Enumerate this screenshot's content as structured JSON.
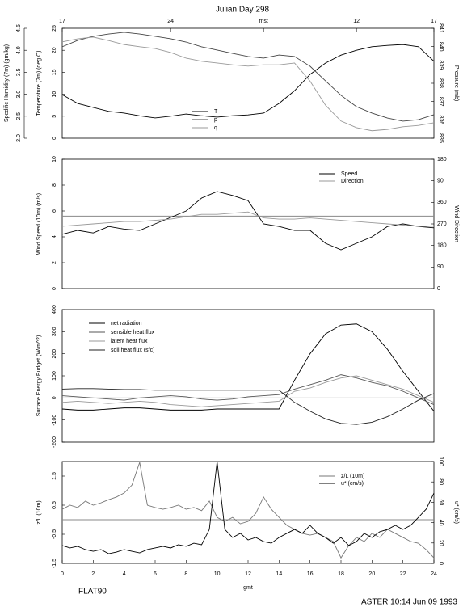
{
  "chart_data": [
    {
      "type": "line",
      "title": "Julian Day 298",
      "x": [
        0,
        1,
        2,
        3,
        4,
        5,
        6,
        7,
        8,
        9,
        10,
        11,
        12,
        13,
        14,
        15,
        16,
        17,
        18,
        19,
        20,
        21,
        22,
        23,
        24
      ],
      "xlim": [
        0,
        24
      ],
      "x2ticks": [
        {
          "value": 0,
          "label": "17"
        },
        {
          "value": 7,
          "label": "24"
        },
        {
          "value": 13,
          "label": "mst"
        },
        {
          "value": 19,
          "label": "12"
        },
        {
          "value": 24,
          "label": "17"
        }
      ],
      "ylabel": "Temperature (7m) (deg C)",
      "ylim": [
        0,
        25
      ],
      "yticks": [
        0,
        5,
        10,
        15,
        20,
        25
      ],
      "y2label": "Pressure (mb)",
      "y2lim": [
        835,
        841
      ],
      "y2ticks": [
        835,
        836,
        837,
        838,
        839,
        840,
        841
      ],
      "y3label": "Spedific Humidity (7m) (gm/kg)",
      "y3lim": [
        2,
        4.5
      ],
      "y3ticks": [
        {
          "value": 2,
          "label": "2.0"
        },
        2.5,
        {
          "value": 3,
          "label": "3.0"
        },
        3.5,
        {
          "value": 4,
          "label": "4.0"
        },
        4.5
      ],
      "legend": "lower center",
      "series": [
        {
          "name": "T",
          "color": "#000000",
          "values": [
            9.9,
            7.9,
            7.0,
            6.1,
            5.7,
            5.1,
            4.6,
            5.0,
            5.5,
            5.1,
            4.8,
            5.1,
            5.3,
            5.7,
            7.9,
            10.8,
            14.5,
            17.1,
            18.9,
            20.0,
            20.8,
            21.1,
            21.3,
            20.8,
            17.5
          ]
        },
        {
          "name": "p",
          "color": "#444444",
          "axis": "y2",
          "values": [
            839.99,
            840.34,
            840.56,
            840.69,
            840.78,
            840.69,
            840.56,
            840.43,
            840.25,
            839.99,
            839.81,
            839.63,
            839.46,
            839.37,
            839.54,
            839.46,
            838.93,
            838.13,
            837.34,
            836.72,
            836.37,
            836.1,
            835.93,
            836.01,
            836.28
          ]
        },
        {
          "name": "q",
          "color": "#999999",
          "axis": "y3",
          "values": [
            4.19,
            4.26,
            4.3,
            4.22,
            4.13,
            4.08,
            4.04,
            3.95,
            3.82,
            3.75,
            3.71,
            3.67,
            3.64,
            3.67,
            3.67,
            3.71,
            3.3,
            2.75,
            2.39,
            2.24,
            2.17,
            2.2,
            2.26,
            2.29,
            2.35
          ]
        }
      ]
    },
    {
      "type": "line",
      "x": [
        0,
        1,
        2,
        3,
        4,
        5,
        6,
        7,
        8,
        9,
        10,
        11,
        12,
        13,
        14,
        15,
        16,
        17,
        18,
        19,
        20,
        21,
        22,
        23,
        24
      ],
      "xlim": [
        0,
        24
      ],
      "ylabel": "Wind Speed (10m) (m/s)",
      "ylim": [
        0,
        10
      ],
      "yticks": [
        0,
        2,
        4,
        6,
        8,
        10
      ],
      "y2label": "Wind Direction",
      "y2lim": [
        0,
        540
      ],
      "y2ticks": [
        0,
        90,
        180,
        270,
        360,
        {
          "value": 450,
          "label": "90"
        },
        {
          "value": 540,
          "label": "180"
        }
      ],
      "hlines": [
        5.6
      ],
      "legend": "upper right",
      "series": [
        {
          "name": "Speed",
          "color": "#000000",
          "values": [
            4.2,
            4.5,
            4.3,
            4.8,
            4.6,
            4.5,
            5.0,
            5.5,
            6.0,
            7.0,
            7.5,
            7.2,
            6.8,
            5.0,
            4.8,
            4.5,
            4.5,
            3.5,
            3.0,
            3.5,
            4.0,
            4.8,
            5.0,
            4.8,
            4.7
          ]
        },
        {
          "name": "Direction",
          "color": "#999999",
          "axis": "y2",
          "values": [
            260,
            265,
            270,
            275,
            280,
            280,
            285,
            290,
            300,
            310,
            310,
            315,
            320,
            295,
            290,
            290,
            295,
            290,
            285,
            280,
            275,
            270,
            265,
            260,
            260
          ]
        }
      ]
    },
    {
      "type": "line",
      "x": [
        0,
        1,
        2,
        3,
        4,
        5,
        6,
        7,
        8,
        9,
        10,
        11,
        12,
        13,
        14,
        15,
        16,
        17,
        18,
        19,
        20,
        21,
        22,
        23,
        24
      ],
      "xlim": [
        0,
        24
      ],
      "ylabel": "Surface Energy Budget (W/m^2)",
      "ylim": [
        -200,
        400
      ],
      "yticks": [
        -200,
        -100,
        0,
        100,
        200,
        300,
        400
      ],
      "hlines": [
        0
      ],
      "legend": "upper left",
      "series": [
        {
          "name": "net radiation",
          "color": "#000000",
          "values": [
            -50,
            -55,
            -55,
            -50,
            -45,
            -45,
            -50,
            -55,
            -55,
            -55,
            -50,
            -50,
            -50,
            -50,
            -50,
            80,
            200,
            290,
            330,
            335,
            300,
            220,
            120,
            30,
            -60
          ]
        },
        {
          "name": "sensible heat flux",
          "color": "#555555",
          "values": [
            10,
            5,
            0,
            -5,
            -10,
            0,
            5,
            10,
            5,
            -5,
            -10,
            -5,
            5,
            10,
            15,
            40,
            60,
            80,
            105,
            90,
            70,
            55,
            30,
            0,
            -30
          ]
        },
        {
          "name": "latent heat flux",
          "color": "#999999",
          "values": [
            -20,
            -15,
            -20,
            -25,
            -20,
            -15,
            -20,
            -30,
            -35,
            -40,
            -35,
            -30,
            -25,
            -20,
            -15,
            30,
            45,
            70,
            90,
            100,
            80,
            60,
            40,
            10,
            -20
          ]
        },
        {
          "name": "soil heat flux (sfc)",
          "color": "#222222",
          "values": [
            40,
            42,
            42,
            40,
            38,
            38,
            35,
            35,
            35,
            35,
            35,
            35,
            35,
            35,
            35,
            -20,
            -60,
            -95,
            -115,
            -120,
            -110,
            -85,
            -50,
            -10,
            20
          ]
        }
      ]
    },
    {
      "type": "line",
      "x": [
        0,
        0.5,
        1,
        1.5,
        2,
        2.5,
        3,
        3.5,
        4,
        4.5,
        5,
        5.5,
        6,
        6.5,
        7,
        7.5,
        8,
        8.5,
        9,
        9.5,
        10,
        10.5,
        11,
        11.5,
        12,
        12.5,
        13,
        13.5,
        14,
        14.5,
        15,
        15.5,
        16,
        16.5,
        17,
        17.5,
        18,
        18.5,
        19,
        19.5,
        20,
        20.5,
        21,
        21.5,
        22,
        22.5,
        23,
        23.5,
        24
      ],
      "xlim": [
        0,
        24
      ],
      "xticks": [
        0,
        2,
        4,
        6,
        8,
        10,
        12,
        14,
        16,
        18,
        20,
        22,
        24
      ],
      "xlabel": "gmt",
      "ylabel": "z/L (10m)",
      "ylim": [
        -1.5,
        2
      ],
      "yticks": [
        -1.5,
        -0.5,
        0.5,
        1.5
      ],
      "y2label": "u* (cm/s)",
      "y2lim": [
        0,
        100
      ],
      "y2ticks": [
        0,
        20,
        40,
        60,
        80,
        100
      ],
      "hlines": [
        0
      ],
      "legend": "upper right",
      "series": [
        {
          "name": "z/L (10m)",
          "color": "#777777",
          "values": [
            0.36,
            0.5,
            0.42,
            0.64,
            0.5,
            0.58,
            0.69,
            0.78,
            0.92,
            1.19,
            1.97,
            0.5,
            0.42,
            0.36,
            0.42,
            0.5,
            0.36,
            0.42,
            0.31,
            0.64,
            0.08,
            -0.06,
            0.08,
            -0.14,
            -0.06,
            0.22,
            0.78,
            0.36,
            0.08,
            -0.19,
            -0.33,
            -0.47,
            -0.53,
            -0.47,
            -0.61,
            -0.75,
            -1.31,
            -0.89,
            -0.61,
            -0.75,
            -0.47,
            -0.61,
            -0.33,
            -0.47,
            -0.61,
            -0.75,
            -0.81,
            -1.03,
            -1.31
          ]
        },
        {
          "name": "u* (cm/s)",
          "color": "#000000",
          "axis": "y2",
          "values": [
            17.5,
            15.1,
            16.7,
            13.5,
            11.9,
            13.5,
            9.5,
            11.1,
            13.5,
            11.9,
            10.3,
            13.5,
            15.1,
            16.7,
            15.1,
            18.3,
            16.7,
            19.8,
            18.3,
            33.3,
            100,
            33.3,
            25.4,
            29.4,
            23.0,
            25.4,
            21.4,
            19.8,
            25.4,
            29.4,
            33.3,
            29.4,
            37.3,
            29.4,
            25.4,
            19.8,
            25.4,
            17.5,
            21.4,
            29.4,
            25.4,
            31.0,
            33.3,
            37.3,
            33.3,
            37.3,
            45.2,
            53.2,
            69.0
          ]
        }
      ]
    }
  ],
  "labels": {
    "station": "FLAT90",
    "stamp": "ASTER 10:14 Jun 09 1993"
  }
}
